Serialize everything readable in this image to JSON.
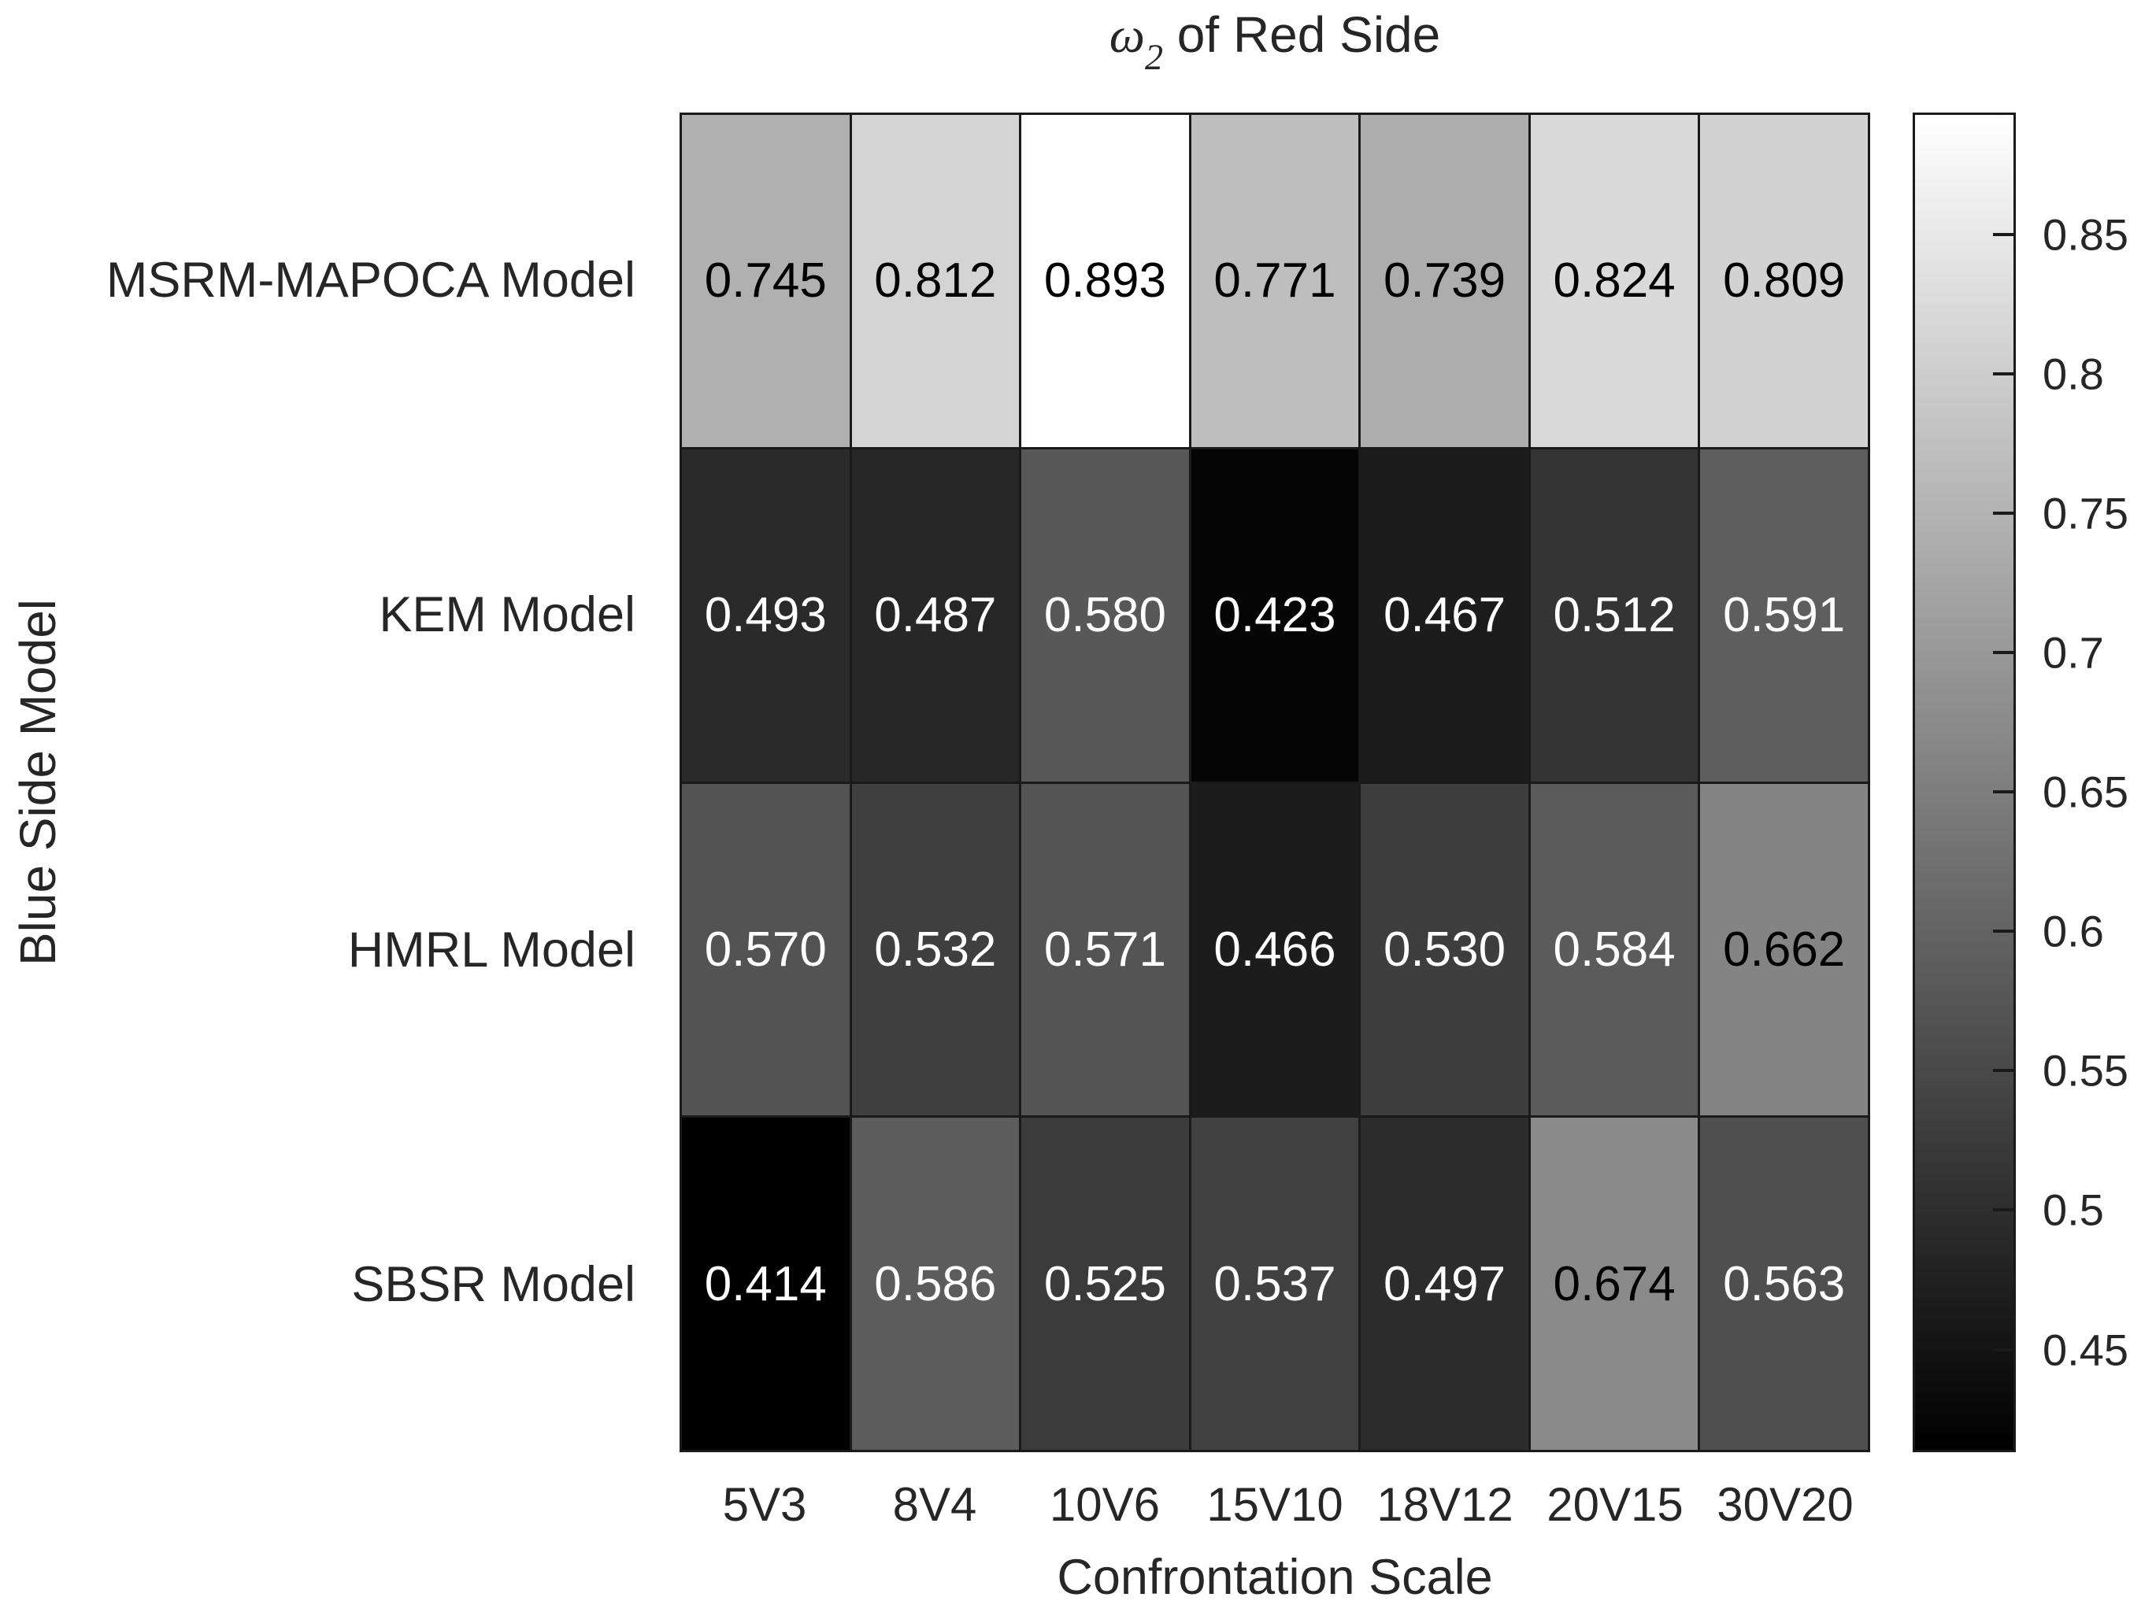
{
  "figure": {
    "background": "#ffffff",
    "grid_line_color": "#1a1a1a",
    "text_color": "#262626"
  },
  "chart_data": {
    "type": "heatmap",
    "title": {
      "symbol": "ω",
      "subscript": "2",
      "rest": " of Red Side",
      "plain": "ω_2 of Red Side"
    },
    "xlabel": "Confrontation Scale",
    "ylabel": "Blue Side Model",
    "x_categories": [
      "5V3",
      "8V4",
      "10V6",
      "15V10",
      "18V12",
      "20V15",
      "30V20"
    ],
    "y_categories": [
      "MSRM-MAPOCA Model",
      "KEM Model",
      "HMRL Model",
      "SBSR Model"
    ],
    "values": [
      [
        0.745,
        0.812,
        0.893,
        0.771,
        0.739,
        0.824,
        0.809
      ],
      [
        0.493,
        0.487,
        0.58,
        0.423,
        0.467,
        0.512,
        0.591
      ],
      [
        0.57,
        0.532,
        0.571,
        0.466,
        0.53,
        0.584,
        0.662
      ],
      [
        0.414,
        0.586,
        0.525,
        0.537,
        0.497,
        0.674,
        0.563
      ]
    ],
    "value_decimals": 3,
    "colormap": "gray",
    "color_limits": [
      0.414,
      0.893
    ],
    "colorbar_ticks": [
      0.85,
      0.8,
      0.75,
      0.7,
      0.65,
      0.6,
      0.55,
      0.5,
      0.45
    ],
    "colorbar_position": "right",
    "cell_text_rule": "black text when normalized value > 0.5, else white",
    "grid": true
  }
}
